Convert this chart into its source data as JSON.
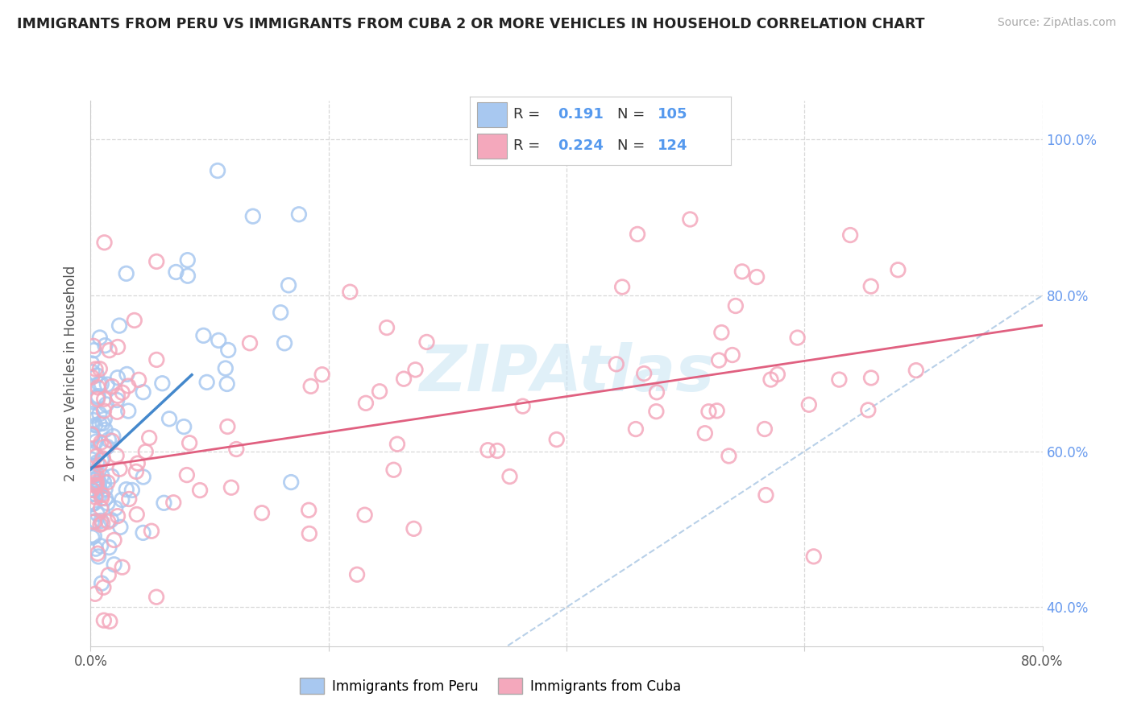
{
  "title": "IMMIGRANTS FROM PERU VS IMMIGRANTS FROM CUBA 2 OR MORE VEHICLES IN HOUSEHOLD CORRELATION CHART",
  "source": "Source: ZipAtlas.com",
  "ylabel": "2 or more Vehicles in Household",
  "xlim": [
    0.0,
    0.8
  ],
  "ylim": [
    0.35,
    1.05
  ],
  "xtick_positions": [
    0.0,
    0.2,
    0.4,
    0.6,
    0.8
  ],
  "xtick_labels_show": [
    "0.0%",
    "",
    "",
    "",
    "80.0%"
  ],
  "ytick_positions": [
    0.4,
    0.6,
    0.8,
    1.0
  ],
  "ytick_labels": [
    "40.0%",
    "60.0%",
    "80.0%",
    "100.0%"
  ],
  "legend_peru_R": "0.191",
  "legend_peru_N": "105",
  "legend_cuba_R": "0.224",
  "legend_cuba_N": "124",
  "peru_color": "#a8c8f0",
  "cuba_color": "#f4a8bc",
  "peru_line_color": "#4488cc",
  "cuba_line_color": "#e06080",
  "diagonal_color": "#b8d0e8",
  "background_color": "#ffffff",
  "grid_color": "#d8d8d8",
  "watermark_color": "#c8e4f4",
  "title_color": "#222222",
  "source_color": "#aaaaaa",
  "ylabel_color": "#555555",
  "ytick_color": "#6699ee",
  "xtick_color": "#555555",
  "legend_text_color": "#333333",
  "legend_value_color": "#5599ee"
}
